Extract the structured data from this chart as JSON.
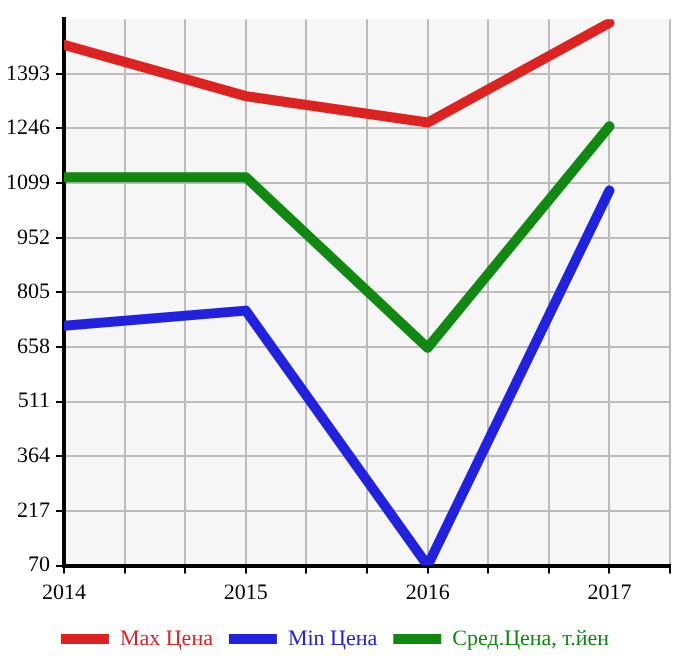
{
  "chart_data": {
    "type": "line",
    "x": [
      2014,
      2015,
      2016,
      2017
    ],
    "xlim": [
      2014,
      2017.333
    ],
    "xticks": [
      2014,
      {
        "value": 2014.333,
        "label": null
      },
      {
        "value": 2014.667,
        "label": null
      },
      2015,
      {
        "value": 2015.333,
        "label": null
      },
      {
        "value": 2015.667,
        "label": null
      },
      2016,
      {
        "value": 2016.333,
        "label": null
      },
      {
        "value": 2016.667,
        "label": null
      },
      2017,
      {
        "value": 2017.333,
        "label": null
      }
    ],
    "ylim": [
      70,
      1540
    ],
    "yticks": [
      70,
      217,
      364,
      511,
      658,
      805,
      952,
      1099,
      1246,
      1393
    ],
    "grid": true,
    "legend": "bottom",
    "marker": "none",
    "line_style": "solid",
    "series": [
      {
        "name": "Max Цена",
        "color": "#dd2222",
        "values": [
          1471,
          1333,
          1262,
          1530
        ]
      },
      {
        "name": "Min Цена",
        "color": "#2222dd",
        "values": [
          715,
          756,
          70,
          1079
        ]
      },
      {
        "name": "Сред.Цена, т.йен",
        "color": "#118811",
        "values": [
          1115,
          1115,
          656,
          1252
        ]
      }
    ]
  }
}
